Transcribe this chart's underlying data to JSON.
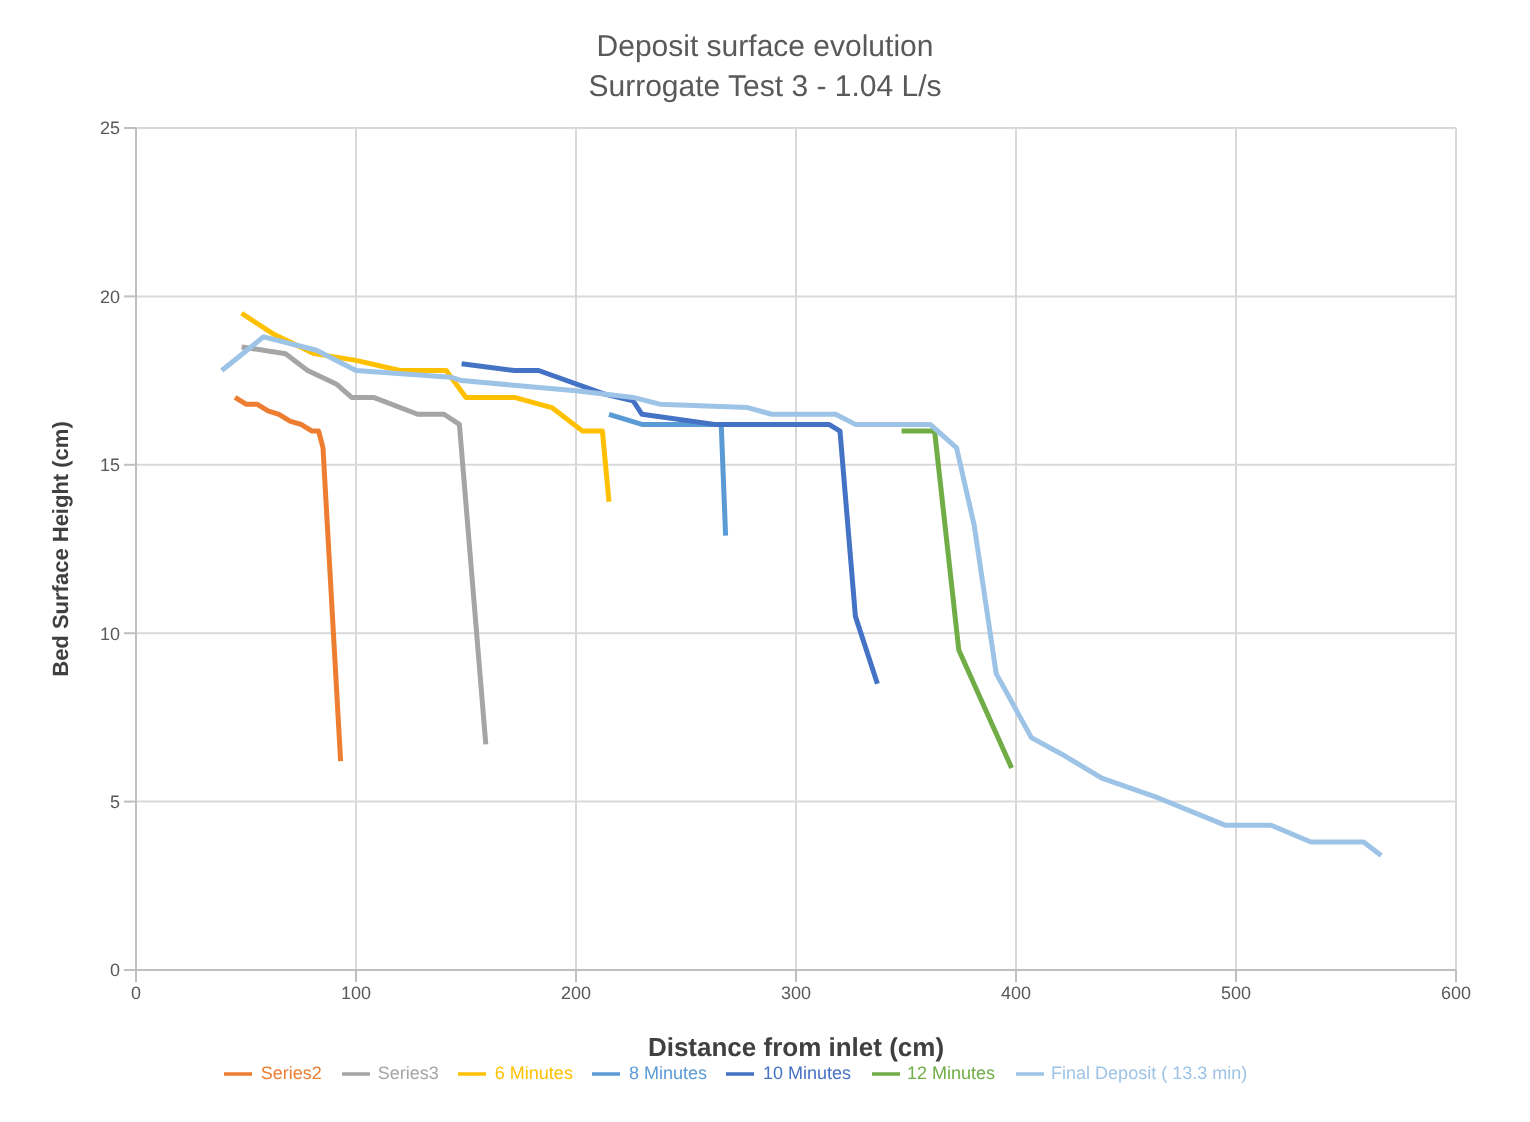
{
  "chart_data": {
    "type": "line",
    "title": "Deposit surface evolution",
    "subtitle": "Surrogate Test 3 - 1.04 L/s",
    "xlabel": "Distance from inlet (cm)",
    "ylabel": "Bed Surface Height (cm)",
    "xlim": [
      0,
      600
    ],
    "xticks": [
      0,
      100,
      200,
      300,
      400,
      500,
      600
    ],
    "ylim": [
      0,
      25
    ],
    "yticks": [
      0,
      5,
      10,
      15,
      20,
      25
    ],
    "grid": true,
    "legend": "bottom",
    "marker": "none",
    "line_style": "solid",
    "series": [
      {
        "name": "Series2",
        "color": "#ed7d31",
        "x": [
          45,
          50,
          55,
          60,
          65,
          70,
          75,
          80,
          83,
          85,
          93
        ],
        "values": [
          17.0,
          16.8,
          16.8,
          16.6,
          16.5,
          16.3,
          16.2,
          16.0,
          16.0,
          15.5,
          6.2
        ]
      },
      {
        "name": "Series3",
        "color": "#a5a5a5",
        "x": [
          48,
          68,
          78,
          91,
          98,
          108,
          128,
          140,
          147,
          159
        ],
        "values": [
          18.5,
          18.3,
          17.8,
          17.4,
          17.0,
          17.0,
          16.5,
          16.5,
          16.2,
          6.7
        ]
      },
      {
        "name": "6 Minutes",
        "color": "#ffc000",
        "x": [
          48,
          62,
          81,
          100,
          120,
          141,
          150,
          172,
          189,
          203,
          212,
          215
        ],
        "values": [
          19.5,
          18.9,
          18.3,
          18.1,
          17.8,
          17.8,
          17.0,
          17.0,
          16.7,
          16.0,
          16.0,
          13.9
        ]
      },
      {
        "name": "8 Minutes",
        "color": "#5b9bd5",
        "x": [
          215,
          230,
          266,
          268
        ],
        "values": [
          16.5,
          16.2,
          16.2,
          12.9
        ]
      },
      {
        "name": "10 Minutes",
        "color": "#4472c4",
        "x": [
          148,
          172,
          183,
          213,
          226,
          230,
          263,
          315,
          320,
          327,
          337
        ],
        "values": [
          18.0,
          17.8,
          17.8,
          17.1,
          16.9,
          16.5,
          16.2,
          16.2,
          16.0,
          10.5,
          8.5
        ]
      },
      {
        "name": "12 Minutes",
        "color": "#70ad47",
        "x": [
          348,
          363,
          374,
          398
        ],
        "values": [
          16.0,
          16.0,
          9.5,
          6.0
        ]
      },
      {
        "name": "Final Deposit ( 13.3 min)",
        "color": "#9dc3e6",
        "x": [
          39,
          58,
          82,
          100,
          143,
          148,
          200,
          226,
          238,
          278,
          289,
          318,
          327,
          361,
          373,
          381,
          391,
          407,
          421,
          439,
          465,
          495,
          516,
          534,
          558,
          566
        ],
        "values": [
          17.8,
          18.8,
          18.4,
          17.8,
          17.6,
          17.5,
          17.2,
          17.0,
          16.8,
          16.7,
          16.5,
          16.5,
          16.2,
          16.2,
          15.5,
          13.2,
          8.8,
          6.9,
          6.4,
          5.7,
          5.1,
          4.3,
          4.3,
          3.8,
          3.8,
          3.4
        ]
      }
    ]
  }
}
